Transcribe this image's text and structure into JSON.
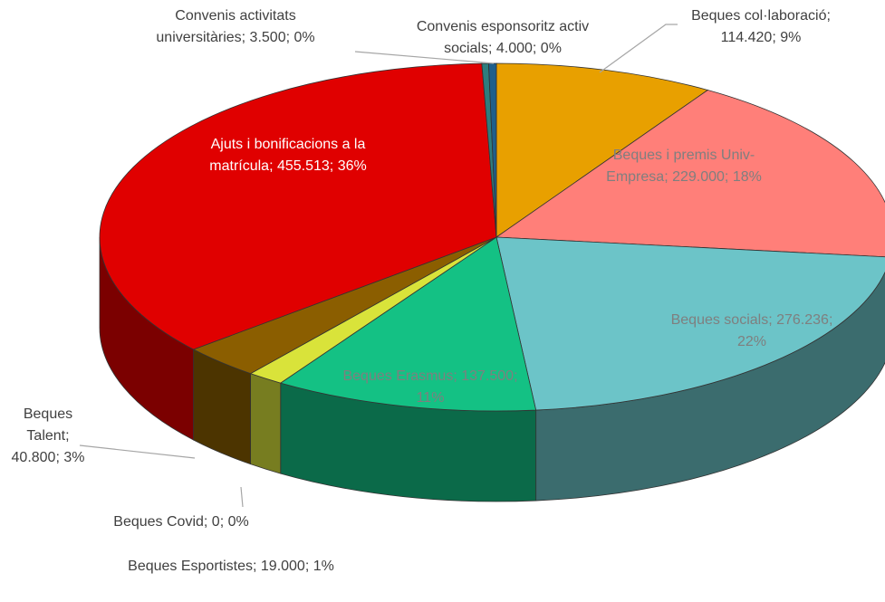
{
  "chart_data": {
    "type": "pie3d",
    "categories": [
      "Beques col·laboració",
      "Beques i premis Univ-Empresa",
      "Beques socials",
      "Beques Erasmus",
      "Beques Esportistes",
      "Beques Covid",
      "Beques Talent",
      "Ajuts i bonificacions a la matrícula",
      "Convenis activitats universitàries",
      "Convenis esponsoritz activ socials"
    ],
    "values": [
      114420,
      229000,
      276236,
      137500,
      19000,
      0,
      40800,
      455513,
      3500,
      4000
    ],
    "value_labels": [
      "114.420",
      "229.000",
      "276.236",
      "137.500",
      "19.000",
      "0",
      "40.800",
      "455.513",
      "3.500",
      "4.000"
    ],
    "percent_labels": [
      "9%",
      "18%",
      "22%",
      "11%",
      "1%",
      "0%",
      "3%",
      "36%",
      "0%",
      "0%"
    ],
    "separator": "; ",
    "colors": [
      "#e8a000",
      "#ff7f79",
      "#6cc4c8",
      "#14c184",
      "#d9e33a",
      "#a0a0a0",
      "#8b5e00",
      "#e00000",
      "#2e7d7d",
      "#1f5f8b"
    ]
  }
}
